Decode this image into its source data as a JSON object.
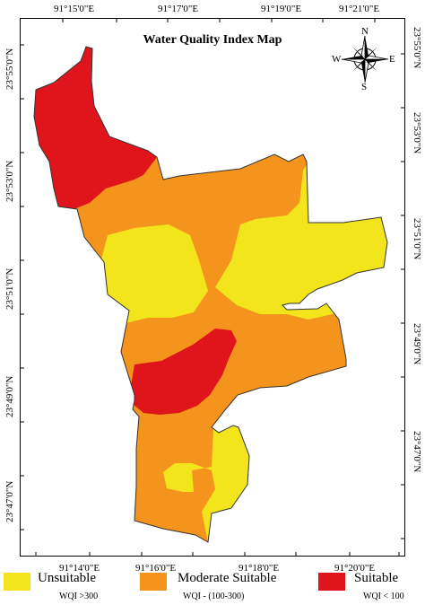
{
  "map": {
    "title": "Water Quality Index Map",
    "colors": {
      "unsuitable": "#f2e51b",
      "moderate": "#f5941c",
      "suitable": "#e0151b",
      "outline": "#333333"
    },
    "top_ticks": [
      "91°15'0\"E",
      "91°17'0\"E",
      "91°19'0\"E",
      "91°21'0\"E"
    ],
    "bottom_ticks": [
      "91°14'0\"E",
      "91°16'0\"E",
      "91°18'0\"E",
      "91°20'0\"E"
    ],
    "left_ticks": [
      "23°55'0\"N",
      "23°53'0\"N",
      "23°51'0\"N",
      "23°49'0\"N",
      "23°47'0\"N"
    ],
    "right_ticks": [
      "23°55'0\"N",
      "23°53'0\"N",
      "23°51'0\"N",
      "23°49'0\"N",
      "23°47'0\"N"
    ]
  },
  "compass": {
    "n": "N",
    "s": "S",
    "e": "E",
    "w": "W"
  },
  "legend": [
    {
      "label": "Unsuitable",
      "sub": "WQI >300",
      "color": "#f2e51b"
    },
    {
      "label": "Moderate Suitable",
      "sub": "WQI - (100-300)",
      "color": "#f5941c"
    },
    {
      "label": "Suitable",
      "sub": "WQI < 100",
      "color": "#e0151b"
    }
  ]
}
